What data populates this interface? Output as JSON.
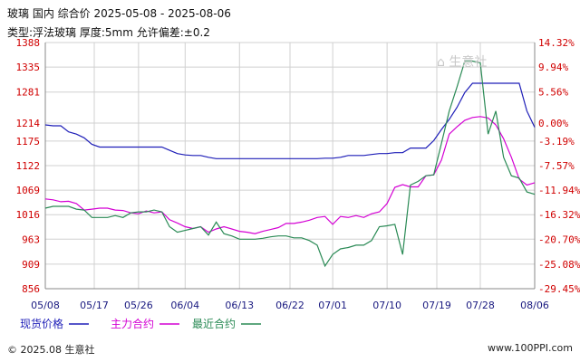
{
  "header": {
    "title": "玻璃 国内 综合价 2025-05-08 - 2025-08-06",
    "subtitle": "类型:浮法玻璃 厚度:5mm 允许偏差:±0.2"
  },
  "watermark": "生意社",
  "footer": {
    "copyright": "© 2025.08 生意社",
    "site": "www.100PPI.com"
  },
  "colors": {
    "series_spot": "#1f1fb8",
    "series_main": "#d400d4",
    "series_near": "#2a8a55",
    "left_axis_text": "#d00000",
    "right_axis_text": "#d00000",
    "x_axis_text": "#1a1a80",
    "grid": "#d0d0d0"
  },
  "chart_data": {
    "type": "line",
    "x": [
      "05/08",
      "05/09",
      "05/12",
      "05/13",
      "05/14",
      "05/15",
      "05/16",
      "05/19",
      "05/20",
      "05/21",
      "05/22",
      "05/23",
      "05/26",
      "05/27",
      "05/28",
      "05/29",
      "05/30",
      "06/03",
      "06/04",
      "06/05",
      "06/06",
      "06/09",
      "06/10",
      "06/11",
      "06/12",
      "06/13",
      "06/16",
      "06/17",
      "06/18",
      "06/19",
      "06/20",
      "06/23",
      "06/24",
      "06/25",
      "06/26",
      "06/27",
      "06/30",
      "07/01",
      "07/02",
      "07/03",
      "07/04",
      "07/07",
      "07/08",
      "07/09",
      "07/10",
      "07/11",
      "07/14",
      "07/15",
      "07/16",
      "07/17",
      "07/18",
      "07/21",
      "07/22",
      "07/23",
      "07/24",
      "07/25",
      "07/28",
      "07/29",
      "07/30",
      "07/31",
      "08/01",
      "08/04",
      "08/05",
      "08/06"
    ],
    "x_ticks": [
      "05/08",
      "05/17",
      "05/26",
      "06/04",
      "06/13",
      "06/22",
      "07/01",
      "07/10",
      "07/19",
      "07/28",
      "08/06"
    ],
    "y_left_ticks": [
      1388,
      1335,
      1281,
      1214,
      1175,
      1122,
      1069,
      1016,
      963,
      909,
      856
    ],
    "y_right_ticks": [
      "14.32%",
      "9.94%",
      "5.56%",
      "0.00%",
      "-3.19%",
      "-7.57%",
      "-11.94%",
      "-16.32%",
      "-20.70%",
      "-25.08%",
      "-29.45%"
    ],
    "ylim": [
      856,
      1388
    ],
    "xlabel": "",
    "ylabel": "",
    "series": [
      {
        "name": "现货价格",
        "color": "#1f1fb8",
        "values": [
          1210,
          1208,
          1208,
          1195,
          1190,
          1182,
          1168,
          1162,
          1162,
          1162,
          1162,
          1162,
          1162,
          1162,
          1162,
          1162,
          1155,
          1148,
          1145,
          1144,
          1144,
          1140,
          1137,
          1137,
          1137,
          1137,
          1137,
          1137,
          1137,
          1137,
          1137,
          1137,
          1137,
          1137,
          1137,
          1137,
          1138,
          1138,
          1140,
          1144,
          1144,
          1144,
          1146,
          1148,
          1148,
          1150,
          1150,
          1160,
          1160,
          1160,
          1176,
          1200,
          1222,
          1248,
          1280,
          1300,
          1300,
          1300,
          1300,
          1300,
          1300,
          1300,
          1240,
          1205
        ]
      },
      {
        "name": "主力合约",
        "color": "#d400d4",
        "values": [
          1050,
          1048,
          1044,
          1045,
          1040,
          1026,
          1028,
          1030,
          1030,
          1026,
          1025,
          1020,
          1018,
          1024,
          1020,
          1022,
          1005,
          998,
          990,
          986,
          990,
          978,
          985,
          990,
          985,
          980,
          978,
          975,
          980,
          984,
          988,
          997,
          997,
          1000,
          1004,
          1010,
          1012,
          995,
          1012,
          1010,
          1014,
          1010,
          1018,
          1022,
          1040,
          1075,
          1081,
          1076,
          1076,
          1100,
          1102,
          1134,
          1190,
          1206,
          1220,
          1226,
          1228,
          1225,
          1210,
          1180,
          1140,
          1093,
          1080,
          1085
        ]
      },
      {
        "name": "最近合约",
        "color": "#2a8a55",
        "values": [
          1030,
          1034,
          1034,
          1034,
          1028,
          1026,
          1010,
          1010,
          1010,
          1014,
          1010,
          1020,
          1022,
          1022,
          1026,
          1022,
          990,
          978,
          982,
          986,
          990,
          972,
          1000,
          975,
          970,
          963,
          963,
          963,
          965,
          968,
          970,
          970,
          966,
          966,
          960,
          950,
          905,
          930,
          942,
          945,
          950,
          950,
          960,
          990,
          992,
          995,
          930,
          1080,
          1088,
          1100,
          1102,
          1170,
          1240,
          1292,
          1348,
          1348,
          1344,
          1190,
          1240,
          1140,
          1100,
          1095,
          1065,
          1060
        ]
      }
    ],
    "grid": true,
    "legend": "bottom"
  }
}
